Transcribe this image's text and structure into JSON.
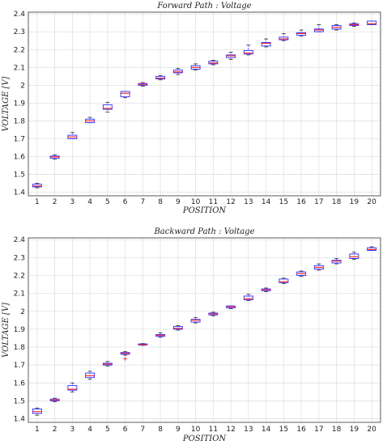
{
  "chart_data": [
    {
      "type": "box",
      "title": "Forward Path : Voltage",
      "xlabel": "POSITION",
      "ylabel": "VOLTAGE  [V]",
      "ylim": [
        1.38,
        2.41
      ],
      "yticks": [
        1.4,
        1.5,
        1.6,
        1.7,
        1.8,
        1.9,
        2,
        2.1,
        2.2,
        2.3,
        2.4
      ],
      "categories": [
        "1",
        "2",
        "3",
        "4",
        "5",
        "6",
        "7",
        "8",
        "9",
        "10",
        "11",
        "12",
        "13",
        "14",
        "15",
        "16",
        "17",
        "18",
        "19",
        "20"
      ],
      "grid": true,
      "boxes": [
        {
          "min": 1.425,
          "q1": 1.43,
          "median": 1.435,
          "q3": 1.445,
          "max": 1.45
        },
        {
          "min": 1.585,
          "q1": 1.59,
          "median": 1.598,
          "q3": 1.603,
          "max": 1.61
        },
        {
          "min": 1.7,
          "q1": 1.7,
          "median": 1.71,
          "q3": 1.72,
          "max": 1.735
        },
        {
          "min": 1.79,
          "q1": 1.79,
          "median": 1.8,
          "q3": 1.81,
          "max": 1.82
        },
        {
          "min": 1.85,
          "q1": 1.865,
          "median": 1.87,
          "q3": 1.89,
          "max": 1.905
        },
        {
          "min": 1.93,
          "q1": 1.935,
          "median": 1.955,
          "q3": 1.965,
          "max": 1.965
        },
        {
          "min": 1.995,
          "q1": 2.0,
          "median": 2.005,
          "q3": 2.01,
          "max": 2.015
        },
        {
          "min": 2.03,
          "q1": 2.035,
          "median": 2.04,
          "q3": 2.05,
          "max": 2.055
        },
        {
          "min": 2.06,
          "q1": 2.07,
          "median": 2.075,
          "q3": 2.085,
          "max": 2.095
        },
        {
          "min": 2.085,
          "q1": 2.09,
          "median": 2.1,
          "q3": 2.11,
          "max": 2.12
        },
        {
          "min": 2.115,
          "q1": 2.12,
          "median": 2.125,
          "q3": 2.135,
          "max": 2.14
        },
        {
          "min": 2.145,
          "q1": 2.155,
          "median": 2.165,
          "q3": 2.17,
          "max": 2.185
        },
        {
          "min": 2.17,
          "q1": 2.175,
          "median": 2.18,
          "q3": 2.195,
          "max": 2.225
        },
        {
          "min": 2.215,
          "q1": 2.22,
          "median": 2.235,
          "q3": 2.24,
          "max": 2.26
        },
        {
          "min": 2.25,
          "q1": 2.255,
          "median": 2.26,
          "q3": 2.27,
          "max": 2.29
        },
        {
          "min": 2.275,
          "q1": 2.28,
          "median": 2.29,
          "q3": 2.295,
          "max": 2.31
        },
        {
          "min": 2.3,
          "q1": 2.3,
          "median": 2.31,
          "q3": 2.315,
          "max": 2.34
        },
        {
          "min": 2.31,
          "q1": 2.315,
          "median": 2.325,
          "q3": 2.335,
          "max": 2.34
        },
        {
          "min": 2.33,
          "q1": 2.335,
          "median": 2.34,
          "q3": 2.345,
          "max": 2.35
        },
        {
          "min": 2.34,
          "q1": 2.34,
          "median": 2.345,
          "q3": 2.36,
          "max": 2.36
        }
      ],
      "outliers": []
    },
    {
      "type": "box",
      "title": "Backward Path : Voltage",
      "xlabel": "POSITION",
      "ylabel": "VOLTAGE  [V]",
      "ylim": [
        1.38,
        2.41
      ],
      "yticks": [
        1.4,
        1.5,
        1.6,
        1.7,
        1.8,
        1.9,
        2,
        2.1,
        2.2,
        2.3,
        2.4
      ],
      "categories": [
        "1",
        "2",
        "3",
        "4",
        "5",
        "6",
        "7",
        "8",
        "9",
        "10",
        "11",
        "12",
        "13",
        "14",
        "15",
        "16",
        "17",
        "18",
        "19",
        "20"
      ],
      "grid": true,
      "boxes": [
        {
          "min": 1.42,
          "q1": 1.43,
          "median": 1.44,
          "q3": 1.455,
          "max": 1.46
        },
        {
          "min": 1.495,
          "q1": 1.5,
          "median": 1.505,
          "q3": 1.51,
          "max": 1.515
        },
        {
          "min": 1.55,
          "q1": 1.56,
          "median": 1.565,
          "q3": 1.585,
          "max": 1.6
        },
        {
          "min": 1.62,
          "q1": 1.63,
          "median": 1.64,
          "q3": 1.655,
          "max": 1.665
        },
        {
          "min": 1.695,
          "q1": 1.7,
          "median": 1.705,
          "q3": 1.71,
          "max": 1.72
        },
        {
          "min": 1.755,
          "q1": 1.76,
          "median": 1.765,
          "q3": 1.77,
          "max": 1.775
        },
        {
          "min": 1.81,
          "q1": 1.812,
          "median": 1.815,
          "q3": 1.818,
          "max": 1.82
        },
        {
          "min": 1.855,
          "q1": 1.86,
          "median": 1.865,
          "q3": 1.87,
          "max": 1.88
        },
        {
          "min": 1.895,
          "q1": 1.9,
          "median": 1.905,
          "q3": 1.915,
          "max": 1.92
        },
        {
          "min": 1.935,
          "q1": 1.94,
          "median": 1.95,
          "q3": 1.955,
          "max": 1.965
        },
        {
          "min": 1.975,
          "q1": 1.98,
          "median": 1.985,
          "q3": 1.99,
          "max": 1.995
        },
        {
          "min": 2.015,
          "q1": 2.02,
          "median": 2.025,
          "q3": 2.03,
          "max": 2.03
        },
        {
          "min": 2.06,
          "q1": 2.065,
          "median": 2.07,
          "q3": 2.085,
          "max": 2.095
        },
        {
          "min": 2.11,
          "q1": 2.115,
          "median": 2.12,
          "q3": 2.125,
          "max": 2.13
        },
        {
          "min": 2.155,
          "q1": 2.16,
          "median": 2.165,
          "q3": 2.18,
          "max": 2.185
        },
        {
          "min": 2.195,
          "q1": 2.2,
          "median": 2.21,
          "q3": 2.22,
          "max": 2.225
        },
        {
          "min": 2.23,
          "q1": 2.235,
          "median": 2.245,
          "q3": 2.255,
          "max": 2.265
        },
        {
          "min": 2.265,
          "q1": 2.27,
          "median": 2.28,
          "q3": 2.285,
          "max": 2.295
        },
        {
          "min": 2.29,
          "q1": 2.295,
          "median": 2.305,
          "q3": 2.32,
          "max": 2.33
        },
        {
          "min": 2.34,
          "q1": 2.34,
          "median": 2.345,
          "q3": 2.355,
          "max": 2.36
        }
      ],
      "outliers": [
        {
          "position": "6",
          "value": 1.735
        }
      ]
    }
  ],
  "colors": {
    "box": "#2b2bff",
    "median": "#ff2020",
    "outlier": "#ff2020",
    "grid": "#e1e1e1",
    "frame": "#333333"
  }
}
